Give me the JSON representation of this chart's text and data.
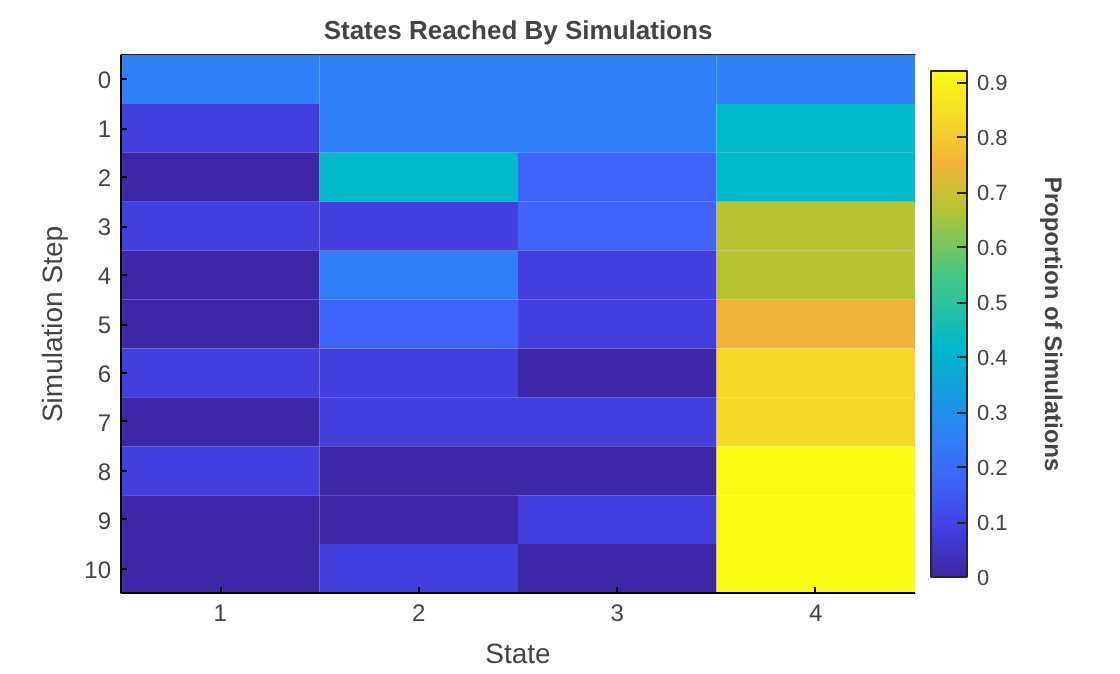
{
  "chart_data": {
    "type": "heatmap",
    "title": "States Reached By Simulations",
    "xlabel": "State",
    "ylabel": "Simulation Step",
    "clabel": "Proportion of Simulations",
    "categories": [
      "1",
      "2",
      "3",
      "4"
    ],
    "y_categories": [
      "0",
      "1",
      "2",
      "3",
      "4",
      "5",
      "6",
      "7",
      "8",
      "9",
      "10"
    ],
    "cells": [
      [
        0.25,
        0.25,
        0.25,
        0.25
      ],
      [
        0.08,
        0.25,
        0.25,
        0.42
      ],
      [
        0,
        0.42,
        0.17,
        0.42
      ],
      [
        0.08,
        0.08,
        0.17,
        0.67
      ],
      [
        0,
        0.25,
        0.08,
        0.67
      ],
      [
        0,
        0.17,
        0.08,
        0.75
      ],
      [
        0.08,
        0.08,
        0,
        0.83
      ],
      [
        0,
        0.08,
        0.08,
        0.83
      ],
      [
        0.08,
        0,
        0,
        0.92
      ],
      [
        0,
        0,
        0.08,
        0.92
      ],
      [
        0,
        0.08,
        0,
        0.92
      ]
    ],
    "clim": [
      0,
      0.92
    ],
    "cticks": [
      0,
      0.1,
      0.2,
      0.3,
      0.4,
      0.5,
      0.6,
      0.7,
      0.8,
      0.9
    ]
  }
}
